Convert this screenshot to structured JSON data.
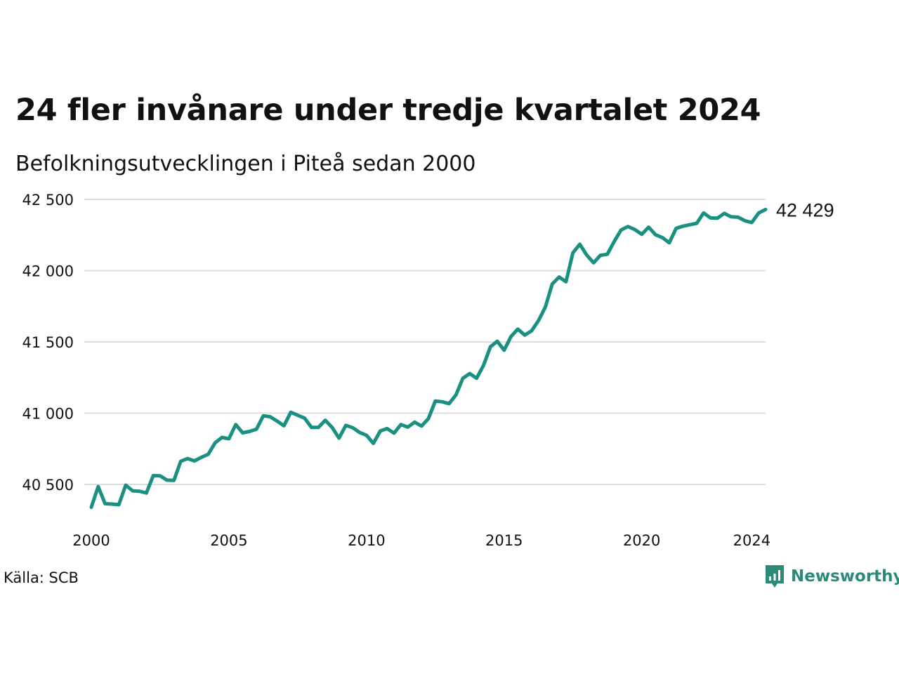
{
  "title": "24 fler invånare under tredje kvartalet 2024",
  "subtitle": "Befolkningsutvecklingen i Piteå sedan 2000",
  "source": "Källa: SCB",
  "brand": {
    "name": "Newsworthy",
    "icon": "newsworthy-logo-icon",
    "color": "#2b8a78"
  },
  "colors": {
    "line": "#1a9080",
    "grid": "#dddddd",
    "text": "#111111"
  },
  "chart_data": {
    "type": "line",
    "title": "24 fler invånare under tredje kvartalet 2024",
    "subtitle": "Befolkningsutvecklingen i Piteå sedan 2000",
    "xlabel": "",
    "ylabel": "",
    "xlim": [
      2000,
      2024.5
    ],
    "ylim": [
      40350,
      42550
    ],
    "x_ticks": [
      2000,
      2005,
      2010,
      2015,
      2020,
      2024
    ],
    "x_tick_labels": [
      "2000",
      "2005",
      "2010",
      "2015",
      "2020",
      "2024"
    ],
    "y_ticks": [
      40500,
      41000,
      41500,
      42000,
      42500
    ],
    "y_tick_labels": [
      "40 500",
      "41 000",
      "41 500",
      "42 000",
      "42 500"
    ],
    "grid": true,
    "end_label": "42 429",
    "series": [
      {
        "x": [
          2000.0,
          2000.25,
          2000.5,
          2000.75,
          2001.0,
          2001.25,
          2001.5,
          2001.75,
          2002.0,
          2002.25,
          2002.5,
          2002.75,
          2003.0,
          2003.25,
          2003.5,
          2003.75,
          2004.0,
          2004.25,
          2004.5,
          2004.75,
          2005.0,
          2005.25,
          2005.5,
          2005.75,
          2006.0,
          2006.25,
          2006.5,
          2006.75,
          2007.0,
          2007.25,
          2007.5,
          2007.75,
          2008.0,
          2008.25,
          2008.5,
          2008.75,
          2009.0,
          2009.25,
          2009.5,
          2009.75,
          2010.0,
          2010.25,
          2010.5,
          2010.75,
          2011.0,
          2011.25,
          2011.5,
          2011.75,
          2012.0,
          2012.25,
          2012.5,
          2012.75,
          2013.0,
          2013.25,
          2013.5,
          2013.75,
          2014.0,
          2014.25,
          2014.5,
          2014.75,
          2015.0,
          2015.25,
          2015.5,
          2015.75,
          2016.0,
          2016.25,
          2016.5,
          2016.75,
          2017.0,
          2017.25,
          2017.5,
          2017.75,
          2018.0,
          2018.25,
          2018.5,
          2018.75,
          2019.0,
          2019.25,
          2019.5,
          2019.75,
          2020.0,
          2020.25,
          2020.5,
          2020.75,
          2021.0,
          2021.25,
          2021.5,
          2021.75,
          2022.0,
          2022.25,
          2022.5,
          2022.75,
          2023.0,
          2023.25,
          2023.5,
          2023.75,
          2024.0,
          2024.25,
          2024.5
        ],
        "y": [
          40340,
          40485,
          40365,
          40362,
          40358,
          40495,
          40455,
          40452,
          40440,
          40562,
          40560,
          40530,
          40528,
          40662,
          40682,
          40665,
          40690,
          40712,
          40792,
          40830,
          40820,
          40920,
          40862,
          40872,
          40887,
          40982,
          40975,
          40945,
          40912,
          41007,
          40985,
          40965,
          40900,
          40900,
          40950,
          40900,
          40825,
          40915,
          40898,
          40865,
          40845,
          40788,
          40875,
          40892,
          40860,
          40920,
          40902,
          40937,
          40910,
          40962,
          41085,
          41080,
          41067,
          41128,
          41245,
          41278,
          41245,
          41335,
          41465,
          41505,
          41442,
          41538,
          41590,
          41548,
          41578,
          41650,
          41745,
          41907,
          41955,
          41922,
          42125,
          42185,
          42110,
          42055,
          42108,
          42115,
          42205,
          42285,
          42310,
          42288,
          42255,
          42305,
          42252,
          42232,
          42195,
          42297,
          42312,
          42322,
          42332,
          42405,
          42370,
          42368,
          42402,
          42378,
          42375,
          42350,
          42338,
          42405,
          42429
        ]
      }
    ]
  }
}
